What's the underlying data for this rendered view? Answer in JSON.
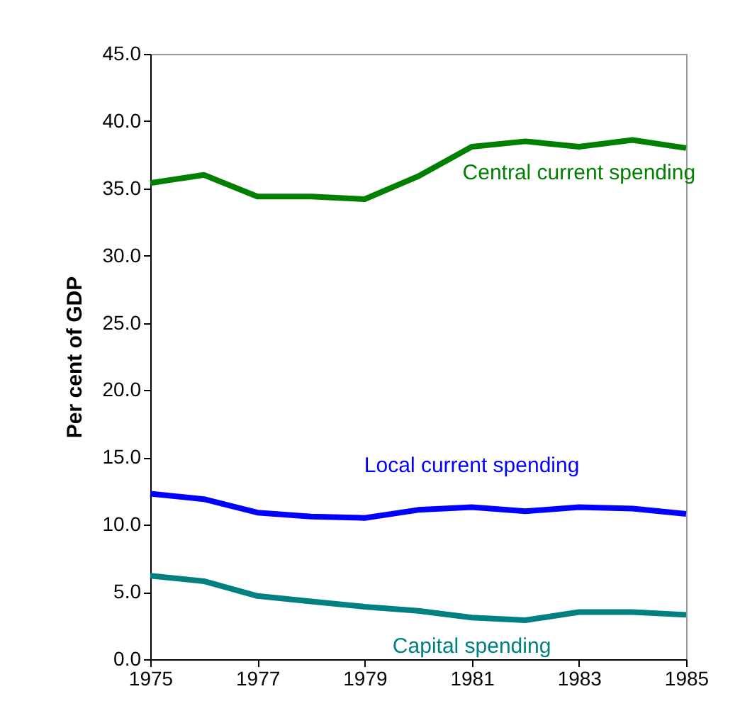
{
  "chart_data": {
    "type": "line",
    "ylabel": "Per cent of GDP",
    "x": [
      1975,
      1976,
      1977,
      1978,
      1979,
      1980,
      1981,
      1982,
      1983,
      1984,
      1985
    ],
    "xlim": [
      1975,
      1985
    ],
    "xticks": [
      1975,
      1977,
      1979,
      1981,
      1983,
      1985
    ],
    "ylim": [
      0,
      45
    ],
    "yticks": [
      {
        "value": 0,
        "label": "0.0"
      },
      {
        "value": 5,
        "label": "5.0"
      },
      {
        "value": 10,
        "label": "10.0"
      },
      {
        "value": 15,
        "label": "15.0"
      },
      {
        "value": 20,
        "label": "20.0"
      },
      {
        "value": 25,
        "label": "25.0"
      },
      {
        "value": 30,
        "label": "30.0"
      },
      {
        "value": 35,
        "label": "35.0"
      },
      {
        "value": 40,
        "label": "40.0"
      },
      {
        "value": 45,
        "label": "45.0"
      }
    ],
    "grid": false,
    "legend": false,
    "marker": "none",
    "line_style": "solid",
    "series": [
      {
        "name": "Central current spending",
        "color": "#008000",
        "values": [
          35.4,
          36.0,
          34.4,
          34.4,
          34.2,
          35.9,
          38.1,
          38.5,
          38.1,
          38.6,
          38.0
        ]
      },
      {
        "name": "Local current spending",
        "color": "#0000ff",
        "values": [
          12.3,
          11.9,
          10.9,
          10.6,
          10.5,
          11.1,
          11.3,
          11.0,
          11.3,
          11.2,
          10.8
        ]
      },
      {
        "name": "Capital spending",
        "color": "#008080",
        "values": [
          6.2,
          5.8,
          4.7,
          4.3,
          3.9,
          3.6,
          3.1,
          2.9,
          3.5,
          3.5,
          3.3
        ]
      }
    ]
  }
}
